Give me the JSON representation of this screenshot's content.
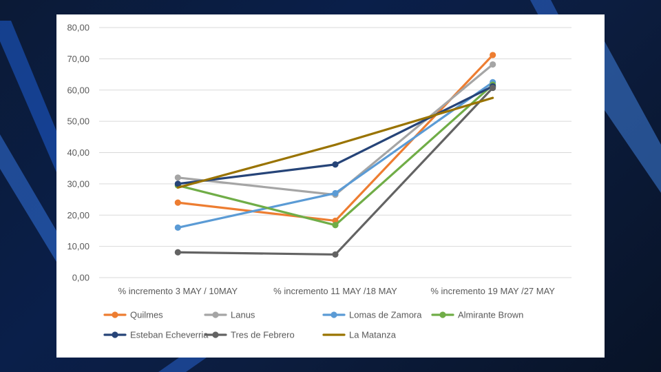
{
  "chart_data": {
    "type": "line",
    "categories": [
      "% incremento 3 MAY / 10MAY",
      "% incremento 11 MAY /18 MAY",
      "% incremento 19 MAY /27 MAY"
    ],
    "ylim": [
      0,
      80
    ],
    "yticks": [
      "0,00",
      "10,00",
      "20,00",
      "30,00",
      "40,00",
      "50,00",
      "60,00",
      "70,00",
      "80,00"
    ],
    "grid": true,
    "legend_position": "bottom",
    "series": [
      {
        "name": "Quilmes",
        "color": "#ED7D31",
        "values": [
          24,
          18.2,
          71.2
        ],
        "markers": true
      },
      {
        "name": "Lanus",
        "color": "#A5A5A5",
        "values": [
          32,
          26.5,
          68.2
        ],
        "markers": true
      },
      {
        "name": "Lomas de Zamora",
        "color": "#5B9BD5",
        "values": [
          16,
          27,
          62.5
        ],
        "markers": true
      },
      {
        "name": "Almirante Brown",
        "color": "#70AD47",
        "values": [
          29.5,
          16.8,
          61.7
        ],
        "markers": true
      },
      {
        "name": "Esteban Echeverria",
        "color": "#264478",
        "values": [
          30,
          36.2,
          61.2
        ],
        "markers": true
      },
      {
        "name": "Tres de Febrero",
        "color": "#636363",
        "values": [
          8.1,
          7.4,
          60.7
        ],
        "markers": true
      },
      {
        "name": "La Matanza",
        "color": "#997300",
        "values": [
          28.8,
          42.5,
          57.5
        ],
        "markers": false
      }
    ]
  }
}
